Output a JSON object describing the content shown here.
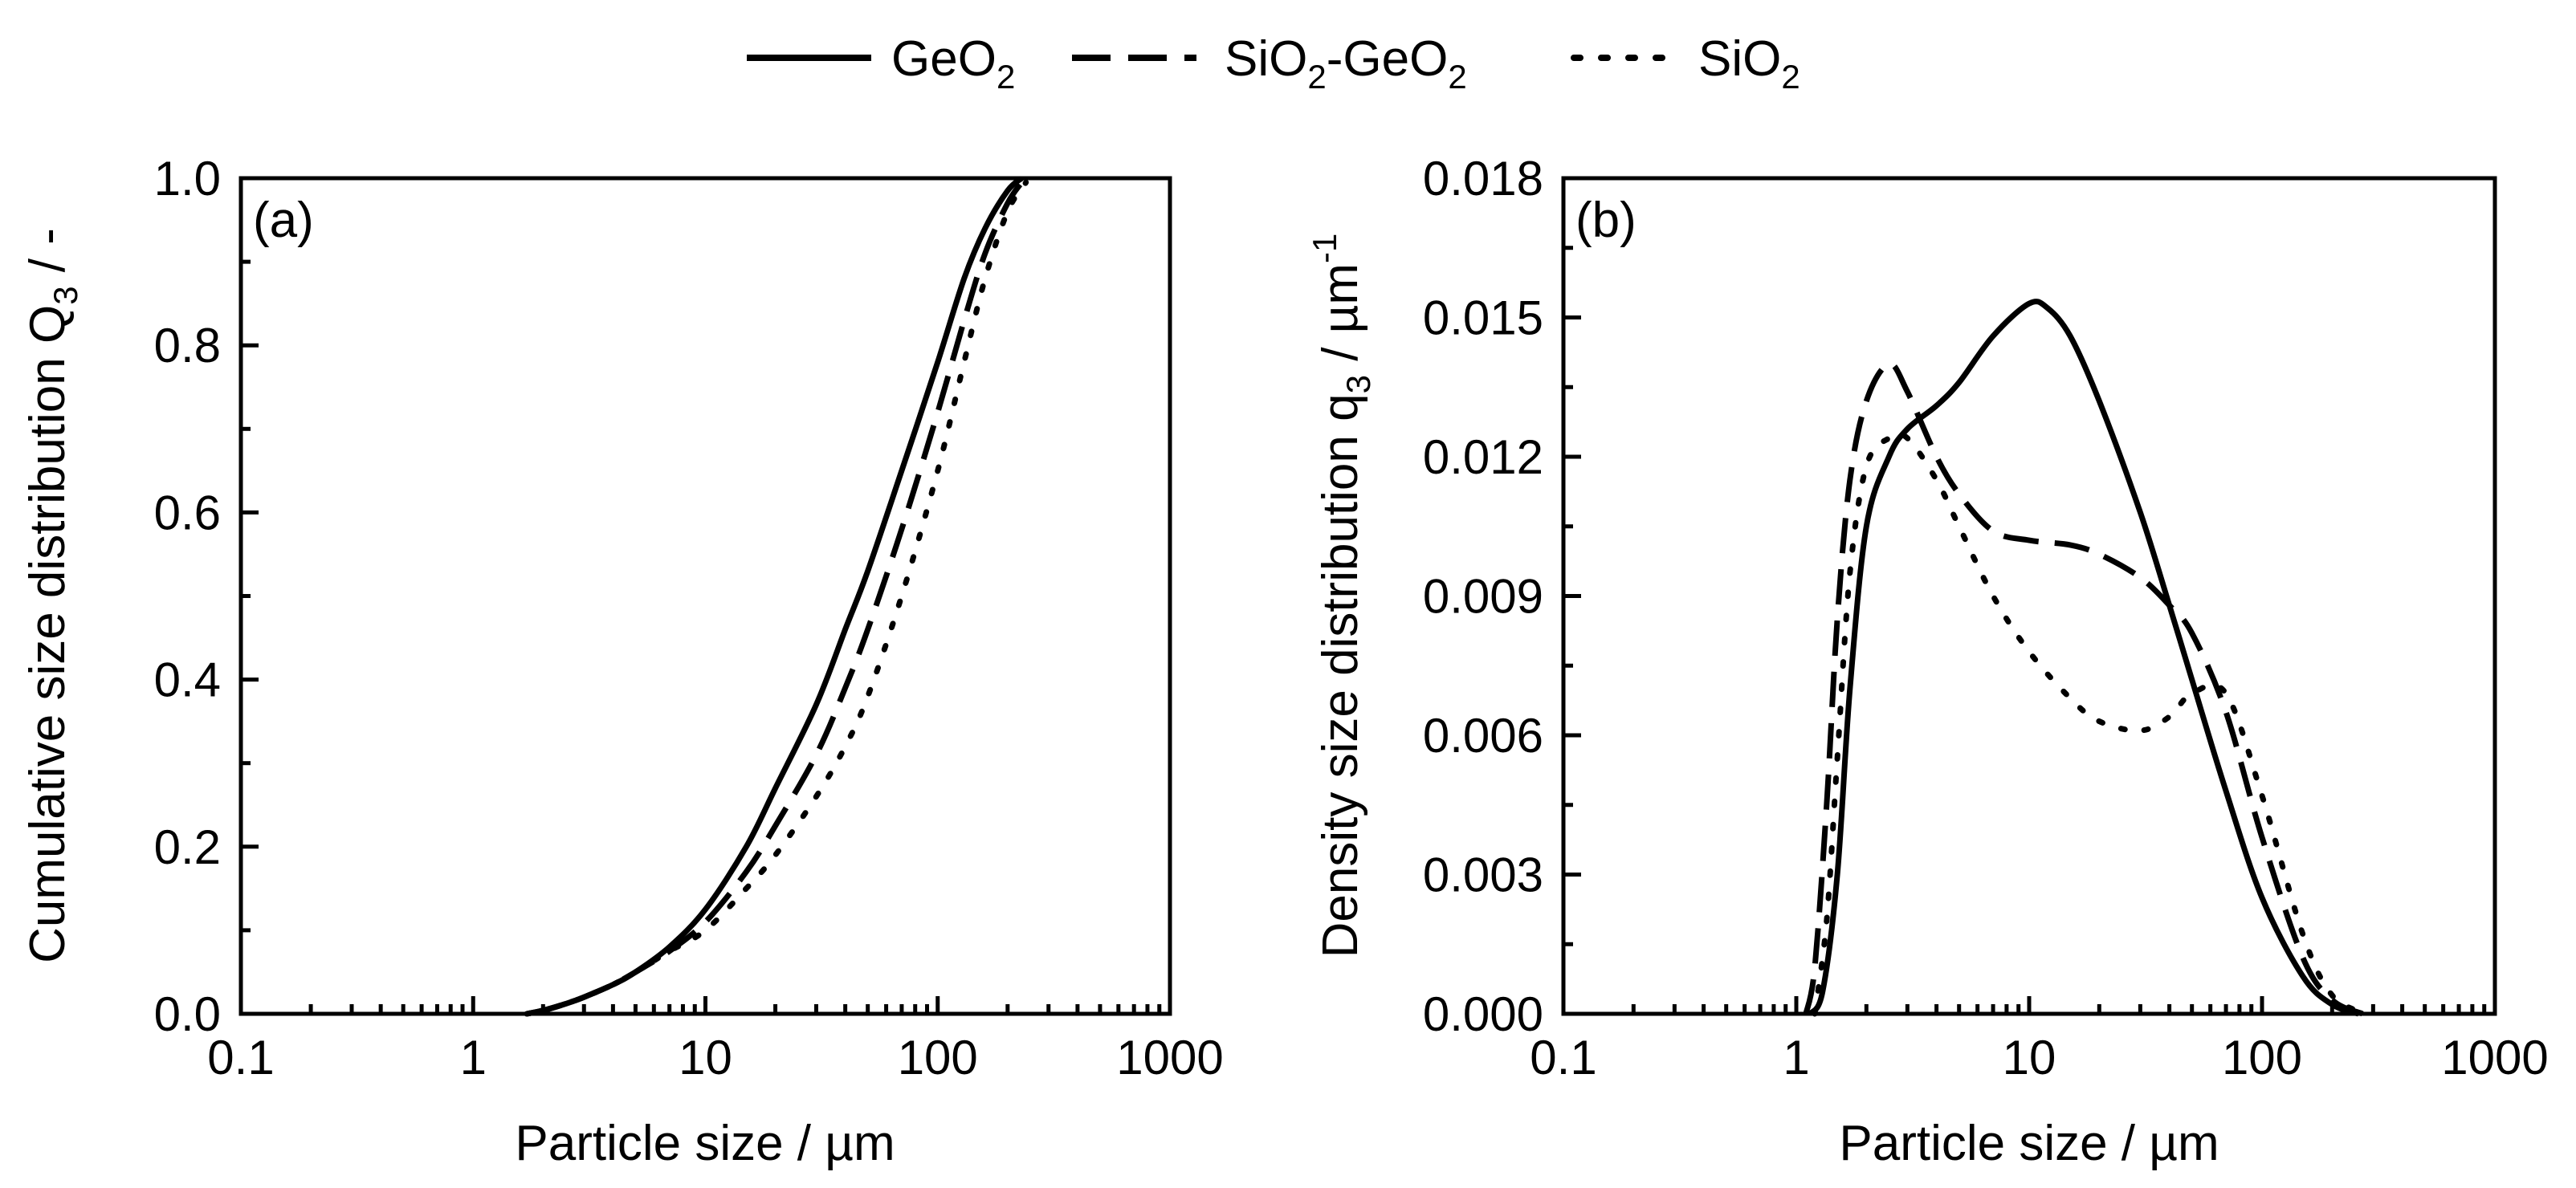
{
  "legend": [
    {
      "name": "GeO",
      "sub": "2",
      "style": "solid"
    },
    {
      "name": "SiO",
      "sub": "2",
      "suffix": "-GeO",
      "suffix_sub": "2",
      "style": "dashed"
    },
    {
      "name": "SiO",
      "sub": "2",
      "style": "dotted"
    }
  ],
  "chart_data": [
    {
      "type": "line",
      "panel_label": "(a)",
      "xscale": "log",
      "xlim": [
        0.1,
        1000
      ],
      "ylim": [
        0,
        1.0
      ],
      "xticks": [
        "0.1",
        "1",
        "10",
        "100",
        "1000"
      ],
      "yticks": [
        "0.0",
        "0.2",
        "0.4",
        "0.6",
        "0.8",
        "1.0"
      ],
      "xlabel": "Particle size / µm",
      "ylabel_main": "Cumulative size distribution Q",
      "ylabel_sub": "3",
      "ylabel_tail": " / -",
      "series": [
        {
          "name": "GeO2",
          "style": "solid",
          "x": [
            1.7,
            2,
            2.5,
            3,
            4,
            5,
            7,
            10,
            15,
            20,
            30,
            40,
            50,
            70,
            100,
            130,
            160,
            200,
            230
          ],
          "y": [
            0,
            0.004,
            0.012,
            0.02,
            0.035,
            0.05,
            0.08,
            0.125,
            0.2,
            0.27,
            0.37,
            0.46,
            0.53,
            0.65,
            0.78,
            0.88,
            0.94,
            0.985,
            1.0
          ]
        },
        {
          "name": "SiO2-GeO2",
          "style": "dashed",
          "x": [
            1.7,
            2,
            2.5,
            3,
            4,
            5,
            7,
            10,
            15,
            20,
            30,
            40,
            50,
            70,
            100,
            130,
            160,
            200,
            230
          ],
          "y": [
            0,
            0.004,
            0.012,
            0.02,
            0.035,
            0.05,
            0.075,
            0.11,
            0.17,
            0.225,
            0.31,
            0.39,
            0.46,
            0.58,
            0.72,
            0.83,
            0.91,
            0.97,
            0.995
          ]
        },
        {
          "name": "SiO2",
          "style": "dotted",
          "x": [
            1.7,
            2,
            2.5,
            3,
            4,
            5,
            7,
            10,
            15,
            20,
            30,
            40,
            50,
            70,
            100,
            130,
            160,
            200,
            240
          ],
          "y": [
            0,
            0.004,
            0.012,
            0.02,
            0.035,
            0.05,
            0.075,
            0.1,
            0.15,
            0.19,
            0.26,
            0.32,
            0.38,
            0.5,
            0.65,
            0.78,
            0.88,
            0.96,
            0.995
          ]
        }
      ]
    },
    {
      "type": "line",
      "panel_label": "(b)",
      "xscale": "log",
      "xlim": [
        0.1,
        1000
      ],
      "ylim": [
        0,
        0.018
      ],
      "xticks": [
        "0.1",
        "1",
        "10",
        "100",
        "1000"
      ],
      "yticks": [
        "0.000",
        "0.003",
        "0.006",
        "0.009",
        "0.012",
        "0.015",
        "0.018"
      ],
      "xlabel": "Particle size / µm",
      "ylabel_main": "Density size distribution q",
      "ylabel_sub": "3",
      "ylabel_tail": " / µm",
      "ylabel_sup": "-1",
      "series": [
        {
          "name": "GeO2",
          "style": "solid",
          "x": [
            1.15,
            1.3,
            1.5,
            1.7,
            2,
            2.5,
            3,
            4,
            5,
            7,
            10,
            12,
            15,
            20,
            30,
            40,
            50,
            70,
            100,
            150,
            200,
            260
          ],
          "y": [
            0,
            0.0005,
            0.003,
            0.007,
            0.0105,
            0.012,
            0.0126,
            0.0131,
            0.0136,
            0.0146,
            0.0153,
            0.0152,
            0.0146,
            0.0132,
            0.0108,
            0.0088,
            0.0072,
            0.0048,
            0.0025,
            0.0008,
            0.0002,
            0
          ]
        },
        {
          "name": "SiO2-GeO2",
          "style": "dashed",
          "x": [
            1.1,
            1.2,
            1.35,
            1.5,
            1.7,
            2,
            2.5,
            3,
            4,
            5,
            7,
            10,
            15,
            20,
            30,
            40,
            50,
            70,
            100,
            150,
            200,
            270
          ],
          "y": [
            0,
            0.001,
            0.0045,
            0.0085,
            0.0115,
            0.0132,
            0.014,
            0.0134,
            0.012,
            0.0112,
            0.0104,
            0.0102,
            0.0101,
            0.0099,
            0.0094,
            0.0088,
            0.0082,
            0.0065,
            0.0038,
            0.0012,
            0.0003,
            0
          ]
        },
        {
          "name": "SiO2",
          "style": "dotted",
          "x": [
            1.2,
            1.35,
            1.5,
            1.7,
            2,
            2.5,
            3,
            4,
            5,
            7,
            10,
            15,
            20,
            30,
            40,
            50,
            70,
            100,
            150,
            200,
            280
          ],
          "y": [
            0,
            0.002,
            0.0055,
            0.0095,
            0.0118,
            0.0124,
            0.0124,
            0.0115,
            0.0105,
            0.009,
            0.0078,
            0.0068,
            0.0063,
            0.0061,
            0.0064,
            0.0069,
            0.0069,
            0.0047,
            0.0017,
            0.0004,
            0
          ]
        }
      ]
    }
  ]
}
